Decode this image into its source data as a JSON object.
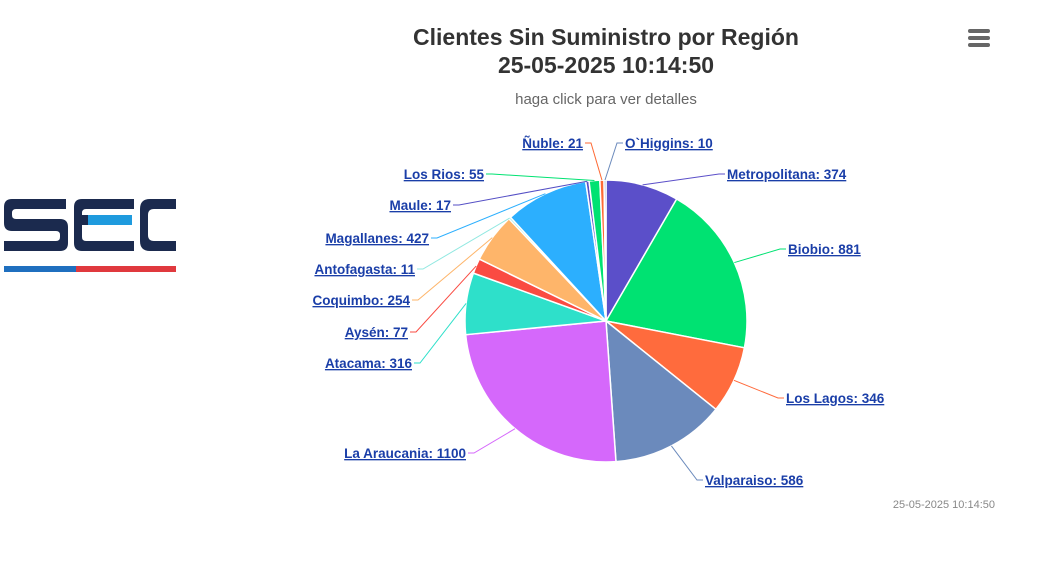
{
  "chart_data": {
    "type": "pie",
    "title": "Clientes Sin Suministro por Región",
    "title_line2": "25-05-2025 10:14:50",
    "subtitle": "haga click para ver detalles",
    "timestamp": "25-05-2025 10:14:50",
    "slices": [
      {
        "name": "Metropolitana",
        "value": 374,
        "color": "#5b4fc9"
      },
      {
        "name": "Biobio",
        "value": 881,
        "color": "#00e272"
      },
      {
        "name": "Los Lagos",
        "value": 346,
        "color": "#ff6b3d"
      },
      {
        "name": "Valparaiso",
        "value": 586,
        "color": "#6b8abc"
      },
      {
        "name": "La Araucania",
        "value": 1100,
        "color": "#d568fb"
      },
      {
        "name": "Atacama",
        "value": 316,
        "color": "#2ee0ca"
      },
      {
        "name": "Aysén",
        "value": 77,
        "color": "#fa4b42"
      },
      {
        "name": "Coquimbo",
        "value": 254,
        "color": "#feb56a"
      },
      {
        "name": "Antofagasta",
        "value": 11,
        "color": "#91e8e1"
      },
      {
        "name": "Magallanes",
        "value": 427,
        "color": "#2caffe"
      },
      {
        "name": "Maule",
        "value": 17,
        "color": "#544fc5"
      },
      {
        "name": "Los Rios",
        "value": 55,
        "color": "#00e272"
      },
      {
        "name": "Ñuble",
        "value": 21,
        "color": "#fe6a35"
      },
      {
        "name": "O`Higgins",
        "value": 10,
        "color": "#6b8abc"
      }
    ]
  },
  "logo": {
    "text": "SEC",
    "colors": {
      "navy": "#1b2a4e",
      "blue": "#1f9bde",
      "red": "#e0393e"
    }
  },
  "menu": {
    "icon": "hamburger-menu-icon"
  }
}
